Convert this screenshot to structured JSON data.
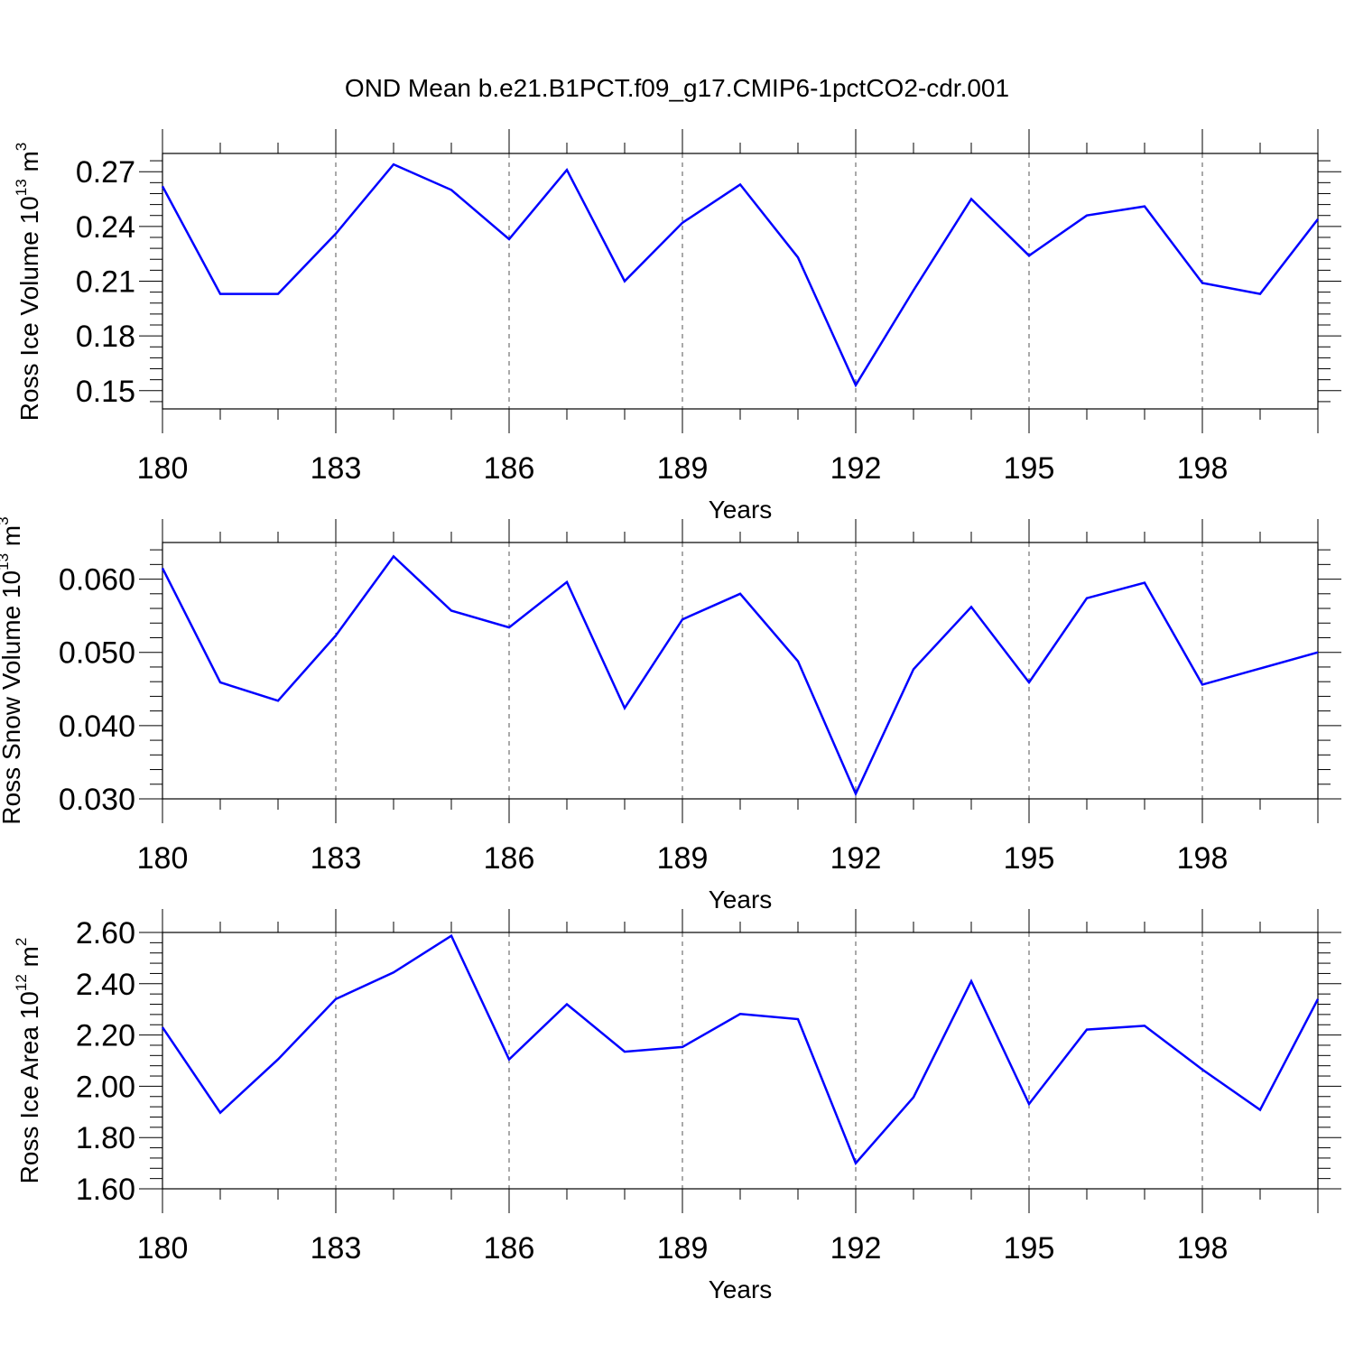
{
  "figure": {
    "title": "OND Mean b.e21.B1PCT.f09_g17.CMIP6-1pctCO2-cdr.001"
  },
  "colors": {
    "line": "#0000ff",
    "axis": "#000000",
    "grid": "#555555",
    "background": "#ffffff"
  },
  "chart_data": [
    {
      "type": "line",
      "ylabel": {
        "main": "Ross Ice Volume 10",
        "exp": "13",
        "unit": " m",
        "unit_exp": "3"
      },
      "xlabel": "Years",
      "x": [
        180,
        181,
        182,
        183,
        184,
        185,
        186,
        187,
        188,
        189,
        190,
        191,
        192,
        193,
        194,
        195,
        196,
        197,
        198,
        199,
        200
      ],
      "values": [
        0.262,
        0.203,
        0.203,
        0.236,
        0.274,
        0.26,
        0.233,
        0.271,
        0.21,
        0.242,
        0.263,
        0.223,
        0.153,
        0.205,
        0.255,
        0.224,
        0.246,
        0.251,
        0.209,
        0.203,
        0.244
      ],
      "xlim": [
        180,
        200
      ],
      "ylim": [
        0.14,
        0.28
      ],
      "xticks": [
        180,
        183,
        186,
        189,
        192,
        195,
        198
      ],
      "xticklabels": [
        "180",
        "183",
        "186",
        "189",
        "192",
        "195",
        "198"
      ],
      "yticks": [
        0.15,
        0.18,
        0.21,
        0.24,
        0.27
      ],
      "yticklabels": [
        "0.15",
        "0.18",
        "0.21",
        "0.24",
        "0.27"
      ],
      "grid": "vertical-dashed"
    },
    {
      "type": "line",
      "ylabel": {
        "main": "Ross Snow Volume 10",
        "exp": "13",
        "unit": " m",
        "unit_exp": "3"
      },
      "xlabel": "Years",
      "x": [
        180,
        181,
        182,
        183,
        184,
        185,
        186,
        187,
        188,
        189,
        190,
        191,
        192,
        193,
        194,
        195,
        196,
        197,
        198,
        199,
        200
      ],
      "values": [
        0.0615,
        0.0459,
        0.0434,
        0.0523,
        0.0631,
        0.0557,
        0.0534,
        0.0596,
        0.0424,
        0.0545,
        0.058,
        0.0488,
        0.0307,
        0.0477,
        0.0562,
        0.0459,
        0.0574,
        0.0595,
        0.0456,
        0.0478,
        0.05
      ],
      "xlim": [
        180,
        200
      ],
      "ylim": [
        0.03,
        0.065
      ],
      "xticks": [
        180,
        183,
        186,
        189,
        192,
        195,
        198
      ],
      "xticklabels": [
        "180",
        "183",
        "186",
        "189",
        "192",
        "195",
        "198"
      ],
      "yticks": [
        0.03,
        0.04,
        0.05,
        0.06
      ],
      "yticklabels": [
        "0.030",
        "0.040",
        "0.050",
        "0.060"
      ],
      "grid": "vertical-dashed"
    },
    {
      "type": "line",
      "ylabel": {
        "main": "Ross Ice Area 10",
        "exp": "12",
        "unit": " m",
        "unit_exp": "2"
      },
      "xlabel": "Years",
      "x": [
        180,
        181,
        182,
        183,
        184,
        185,
        186,
        187,
        188,
        189,
        190,
        191,
        192,
        193,
        194,
        195,
        196,
        197,
        198,
        199,
        200
      ],
      "values": [
        2.23,
        1.897,
        2.105,
        2.34,
        2.444,
        2.587,
        2.105,
        2.32,
        2.135,
        2.153,
        2.282,
        2.262,
        1.7,
        1.957,
        2.41,
        1.931,
        2.221,
        2.236,
        2.065,
        1.908,
        2.34
      ],
      "xlim": [
        180,
        200
      ],
      "ylim": [
        1.6,
        2.6
      ],
      "xticks": [
        180,
        183,
        186,
        189,
        192,
        195,
        198
      ],
      "xticklabels": [
        "180",
        "183",
        "186",
        "189",
        "192",
        "195",
        "198"
      ],
      "yticks": [
        1.6,
        1.8,
        2.0,
        2.2,
        2.4,
        2.6
      ],
      "yticklabels": [
        "1.60",
        "1.80",
        "2.00",
        "2.20",
        "2.40",
        "2.60"
      ],
      "grid": "vertical-dashed"
    }
  ]
}
